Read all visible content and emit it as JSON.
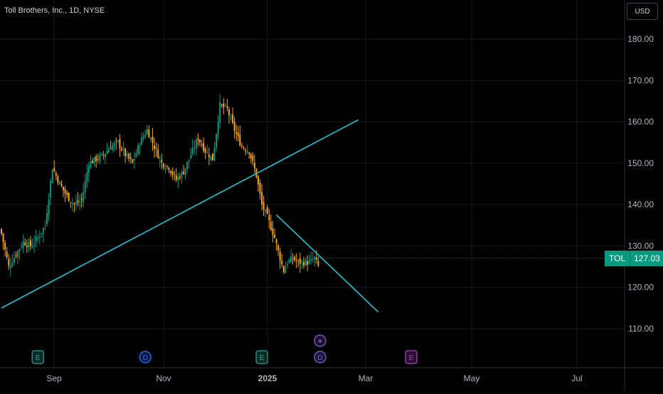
{
  "header": {
    "title": "Toll Brothers, Inc., 1D, NYSE",
    "currency": "USD"
  },
  "last_price": {
    "symbol": "TOL",
    "value": "127.03",
    "color": "#089981"
  },
  "colors": {
    "up": "#089981",
    "down": "#f7a21b",
    "trendline": "#22c3d4",
    "grid": "#1a1a1a",
    "background": "#000000"
  },
  "chart_data": {
    "type": "candlestick",
    "title": "Toll Brothers, Inc., 1D, NYSE",
    "y_axis": {
      "ticks": [
        "180.00",
        "170.00",
        "160.00",
        "150.00",
        "140.00",
        "130.00",
        "120.00",
        "110.00"
      ],
      "range": [
        101,
        189
      ]
    },
    "x_axis": {
      "ticks": [
        "Sep",
        "Nov",
        "2025",
        "Mar",
        "May",
        "Jul"
      ]
    },
    "close_path": [
      [
        0,
        133
      ],
      [
        4,
        125
      ],
      [
        8,
        128
      ],
      [
        12,
        131
      ],
      [
        16,
        130
      ],
      [
        20,
        132
      ],
      [
        24,
        135
      ],
      [
        28,
        149
      ],
      [
        32,
        145
      ],
      [
        36,
        142
      ],
      [
        40,
        140
      ],
      [
        44,
        141
      ],
      [
        48,
        150
      ],
      [
        52,
        151
      ],
      [
        56,
        152
      ],
      [
        60,
        154
      ],
      [
        64,
        155
      ],
      [
        68,
        152
      ],
      [
        72,
        150
      ],
      [
        76,
        155
      ],
      [
        80,
        158
      ],
      [
        84,
        154
      ],
      [
        88,
        150
      ],
      [
        92,
        149
      ],
      [
        96,
        146
      ],
      [
        100,
        148
      ],
      [
        104,
        152
      ],
      [
        108,
        156
      ],
      [
        112,
        153
      ],
      [
        116,
        151
      ],
      [
        120,
        164
      ],
      [
        124,
        163
      ],
      [
        128,
        158
      ],
      [
        132,
        154
      ],
      [
        136,
        153
      ],
      [
        138,
        150
      ],
      [
        140,
        147
      ],
      [
        143,
        140
      ],
      [
        146,
        137
      ],
      [
        150,
        132
      ],
      [
        153,
        127
      ],
      [
        155,
        124
      ],
      [
        157,
        126
      ],
      [
        160,
        127
      ],
      [
        163,
        126
      ],
      [
        166,
        126
      ],
      [
        169,
        126
      ],
      [
        172,
        127
      ],
      [
        174,
        125
      ]
    ],
    "trendlines": [
      {
        "from": [
          0,
          115
        ],
        "to": [
          196,
          160.5
        ]
      },
      {
        "from": [
          151,
          137.5
        ],
        "to": [
          207,
          114
        ]
      }
    ],
    "events": [
      {
        "label": "E",
        "x": 20,
        "color": "#26a69a"
      },
      {
        "label": "D",
        "x": 79,
        "color": "#2962ff"
      },
      {
        "label": "E",
        "x": 143,
        "color": "#26a69a"
      },
      {
        "label": "D",
        "x": 175,
        "color": "#7e57c2"
      },
      {
        "label": "✦",
        "x": 175,
        "color": "#7e57c2"
      },
      {
        "label": "E",
        "x": 225,
        "color": "#ab47bc"
      }
    ]
  }
}
